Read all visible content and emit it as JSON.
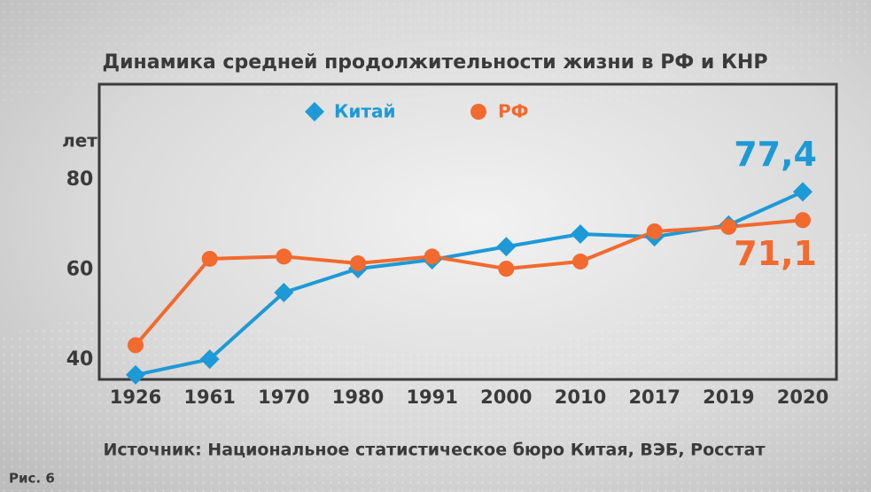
{
  "chart_data": {
    "type": "line",
    "title": "Динамика средней продолжительности жизни в РФ и КНР",
    "y_label": "лет",
    "categories": [
      "1926",
      "1961",
      "1970",
      "1980",
      "1991",
      "2000",
      "2010",
      "2017",
      "2019",
      "2020"
    ],
    "series": [
      {
        "name": "Китай",
        "color": "#1d9ad6",
        "marker": "diamond",
        "values": [
          36.7,
          40.2,
          55,
          60.3,
          62.3,
          65.2,
          68,
          67.4,
          70,
          77.4
        ],
        "value_labels": [
          null,
          null,
          null,
          null,
          null,
          null,
          null,
          null,
          null,
          "77,4"
        ]
      },
      {
        "name": "РФ",
        "color": "#f26a2e",
        "marker": "circle",
        "values": [
          43.3,
          62.5,
          63,
          61.5,
          63,
          60.3,
          61.9,
          68.6,
          69.6,
          71.1
        ],
        "value_labels": [
          null,
          null,
          null,
          null,
          null,
          null,
          null,
          null,
          null,
          "71,1"
        ]
      }
    ],
    "ylim": [
      35.7,
      101.3
    ],
    "yticks": [
      40,
      60,
      80
    ],
    "source": "Источник: Национальное статистическое бюро Китая, ВЭБ, Росстат",
    "figure_label": "Рис. 6"
  }
}
